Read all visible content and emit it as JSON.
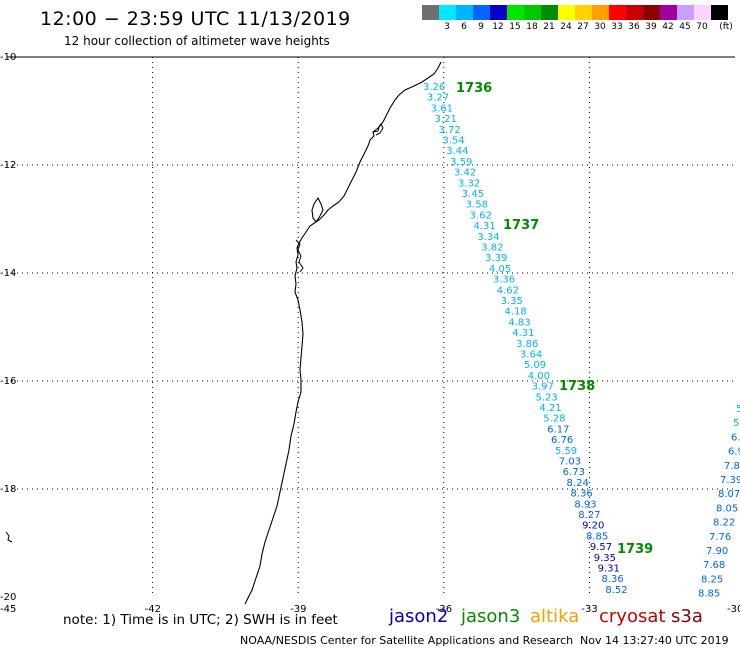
{
  "header": {
    "title": "12:00 − 23:59 UTC 11/13/2019",
    "subtitle": "12 hour collection of altimeter wave heights"
  },
  "colorbar": {
    "unit": "(ft)",
    "swatches": [
      {
        "color": "#707070",
        "label": ""
      },
      {
        "color": "#00e8ff",
        "label": "3"
      },
      {
        "color": "#00b4ff",
        "label": "6"
      },
      {
        "color": "#0064ff",
        "label": "9"
      },
      {
        "color": "#0000c8",
        "label": "12"
      },
      {
        "color": "#00e600",
        "label": "15"
      },
      {
        "color": "#00c800",
        "label": "18"
      },
      {
        "color": "#008c00",
        "label": "21"
      },
      {
        "color": "#ffff00",
        "label": "24"
      },
      {
        "color": "#ffd200",
        "label": "27"
      },
      {
        "color": "#ffa000",
        "label": "30"
      },
      {
        "color": "#ff0000",
        "label": "33"
      },
      {
        "color": "#c80000",
        "label": "36"
      },
      {
        "color": "#8c0000",
        "label": "39"
      },
      {
        "color": "#a000a0",
        "label": "42"
      },
      {
        "color": "#c8a0ff",
        "label": "45"
      },
      {
        "color": "#ffd2ff",
        "label": "70"
      },
      {
        "color": "#000000",
        "label": ""
      }
    ]
  },
  "map": {
    "lon_range": [
      -45,
      -30
    ],
    "lat_range": [
      -20,
      -10
    ],
    "lon_ticks": [
      "-45",
      "-42",
      "-39",
      "-36",
      "-33",
      "-30"
    ],
    "lat_ticks": [
      "-10",
      "-12",
      "-14",
      "-16",
      "-18",
      "-20"
    ],
    "pass_labels": [
      "1736",
      "1737",
      "1738",
      "1739"
    ],
    "track_main_values": [
      "3.26",
      "3.27",
      "3.61",
      "3.21",
      "3.72",
      "3.54",
      "3.44",
      "3.59",
      "3.42",
      "3.32",
      "3.45",
      "3.58",
      "3.62",
      "4.31",
      "3.34",
      "3.82",
      "3.39",
      "4.05",
      "3.36",
      "4.62",
      "3.35",
      "4.18",
      "4.83",
      "4.31",
      "3.86",
      "3.64",
      "5.09",
      "4.00",
      "3.97",
      "5.23",
      "4.21",
      "5.28",
      "6.17",
      "6.76",
      "5.59",
      "7.03",
      "6.73",
      "8.24",
      "8.36",
      "8.93",
      "8.27",
      "9.20",
      "8.85",
      "9.57",
      "9.35",
      "9.31",
      "8.36",
      "8.52"
    ],
    "track_right_values": [
      "5",
      "5",
      "6.",
      "6.9",
      "7.8",
      "7.39",
      "8.07",
      "8.05",
      "8.22",
      "7.76",
      "7.90",
      "7.68",
      "8.25",
      "8.85"
    ],
    "colors": {
      "coast": "#000000",
      "grid": "#000000",
      "pass_label": "#008c00"
    }
  },
  "footer": {
    "note": "note:  1) Time is in UTC;  2) SWH is in feet",
    "legend": [
      {
        "name": "jason2",
        "color": "#0000c8"
      },
      {
        "name": "jason3",
        "color": "#008c00"
      },
      {
        "name": "altika",
        "color": "#ffa000"
      },
      {
        "name": "cryosat",
        "color": "#c80000"
      },
      {
        "name": "s3a",
        "color": "#8c0000"
      }
    ],
    "credit": "NOAA/NESDIS Center for Satellite Applications and Research",
    "timestamp": "Nov 14 13:27:40 UTC 2019"
  }
}
